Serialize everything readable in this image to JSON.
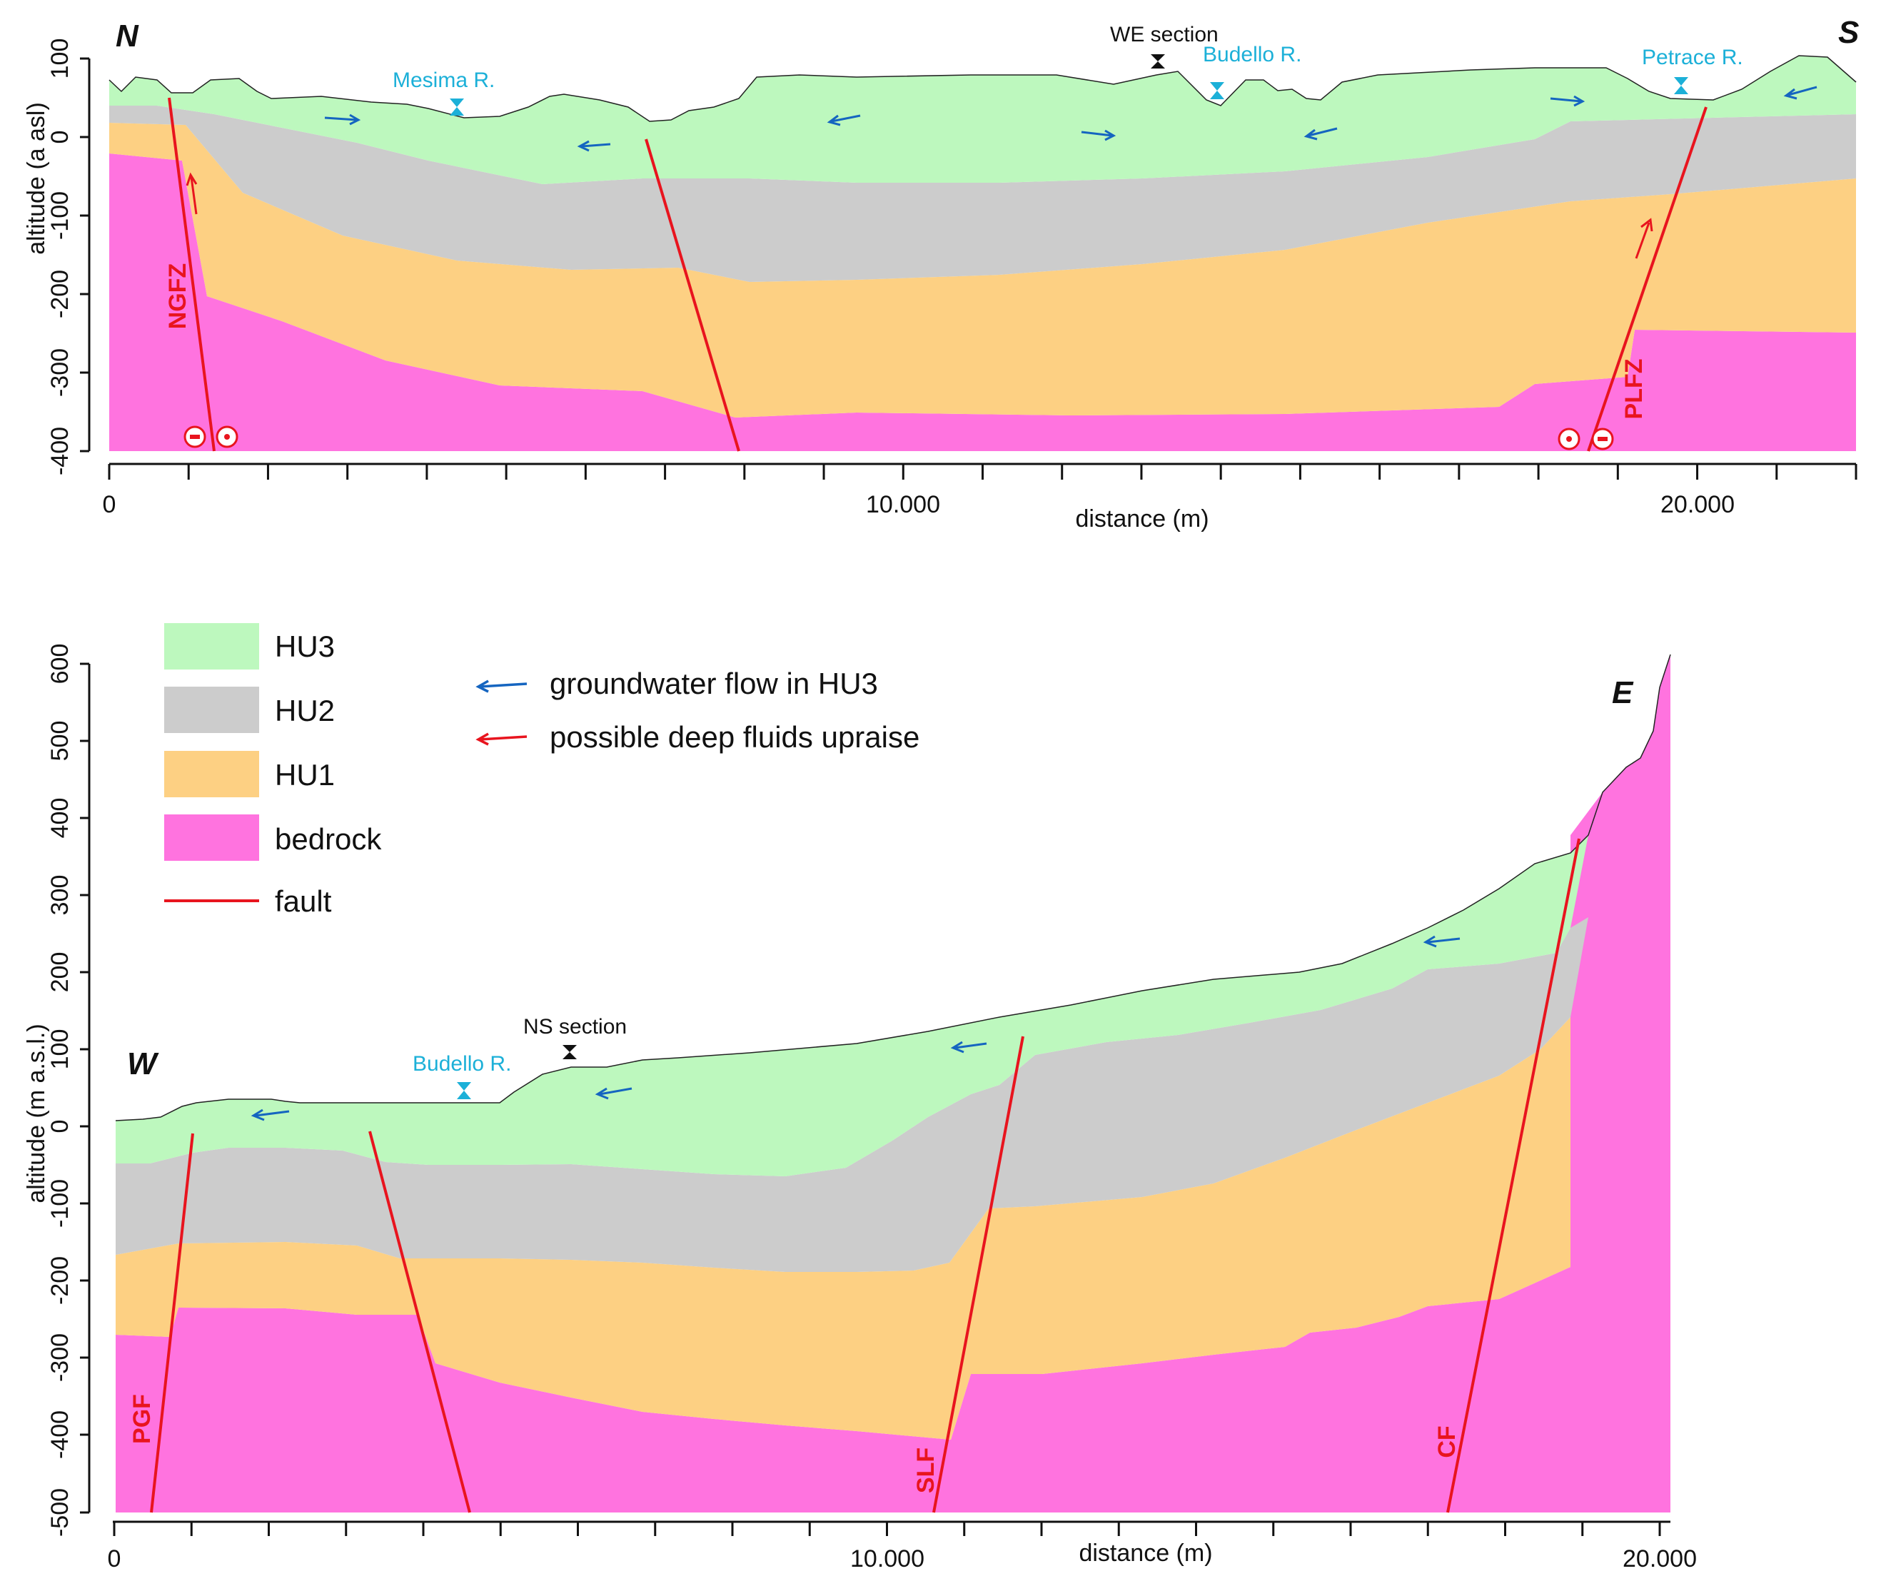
{
  "colors": {
    "hu3": "#bdf8be",
    "hu2": "#cccccc",
    "hu1": "#fdd083",
    "bedrock": "#ff73df",
    "fault": "#e8141e",
    "groundwater": "#1565c0",
    "river": "#1cb0d8"
  },
  "legend": {
    "hu3": "HU3",
    "hu2": "HU2",
    "hu1": "HU1",
    "bedrock": "bedrock",
    "fault": "fault",
    "groundwater_flow": "groundwater flow in HU3",
    "deep_fluids": "possible deep fluids upraise"
  },
  "sections": [
    {
      "id": "ns",
      "ylabel": "altitude (a asl)",
      "xlabel": "distance (m)",
      "xlim": [
        0,
        22000
      ],
      "ylim": [
        -400,
        100
      ],
      "x_tick_labels": [
        "0",
        "10.000",
        "20.000"
      ],
      "y_tick_labels": [
        "100",
        "0",
        "-100",
        "-200",
        "-300",
        "-400"
      ],
      "ends": {
        "left": "N",
        "right": "S"
      },
      "cross_section_label": "WE section",
      "rivers": [
        "Mesima R.",
        "Budello R.",
        "Petrace R."
      ],
      "faults": [
        "NGFZ",
        "PLFZ"
      ]
    },
    {
      "id": "we",
      "ylabel": "altitude (m a.s.l.)",
      "xlabel": "distance (m)",
      "xlim": [
        0,
        20000
      ],
      "ylim": [
        -500,
        600
      ],
      "x_tick_labels": [
        "0",
        "10.000",
        "20.000"
      ],
      "y_tick_labels": [
        "600",
        "500",
        "400",
        "300",
        "200",
        "100",
        "0",
        "-100",
        "-200",
        "-300",
        "-400",
        "-500"
      ],
      "ends": {
        "left": "W",
        "right": "E"
      },
      "cross_section_label": "NS section",
      "rivers": [
        "Budello R."
      ],
      "faults": [
        "PGF",
        "SLF",
        "CF"
      ]
    }
  ]
}
